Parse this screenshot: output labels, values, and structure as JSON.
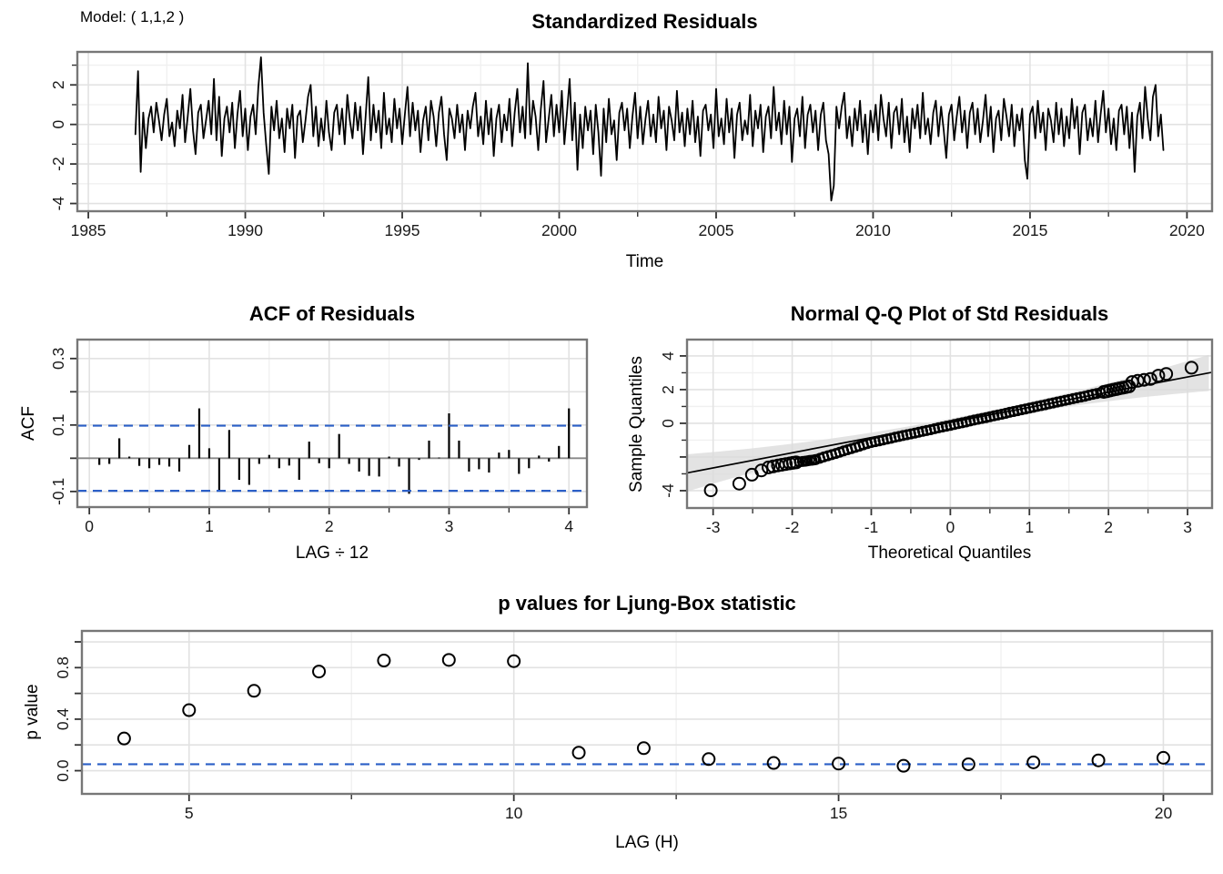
{
  "model_label": "Model: ( 1,1,2 )",
  "colors": {
    "series": "#000000",
    "dashed_blue": "#2b5fc7",
    "grid_major": "#e2e2e2",
    "grid_minor": "#f0f0f0",
    "panel_border": "#777777",
    "tick": "#333333",
    "qq_band": "#dcdcdc",
    "zero_line": "#888888"
  },
  "chart_data": [
    {
      "id": "residuals",
      "type": "line",
      "title": "Standardized Residuals",
      "xlabel": "Time",
      "ylabel": "",
      "xlim": [
        1984.65,
        2020.8
      ],
      "ylim": [
        -4.39,
        3.67
      ],
      "grid": true,
      "legend": "none",
      "x_ticks": {
        "values": [
          1985,
          1990,
          1995,
          2000,
          2005,
          2010,
          2015,
          2020
        ],
        "labels": [
          "1985",
          "1990",
          "1995",
          "2000",
          "2005",
          "2010",
          "2015",
          "2020"
        ]
      },
      "x_minor": [
        1987.5,
        1992.5,
        1997.5,
        2002.5,
        2007.5,
        2012.5,
        2017.5
      ],
      "y_ticks": {
        "values": [
          2,
          0,
          -2,
          -4
        ],
        "labels": [
          "2",
          "0",
          "-2",
          "-4"
        ]
      },
      "y_minor": [
        3,
        1,
        -1,
        -3
      ],
      "start_year": 1986.5,
      "step_years": 0.083333,
      "values": [
        -0.5,
        2.7,
        -2.4,
        0.6,
        -1.2,
        0.3,
        0.9,
        -0.4,
        1.1,
        0.2,
        -0.8,
        0.5,
        1.3,
        -0.6,
        0.1,
        -1.1,
        0.7,
        -0.2,
        1.5,
        -0.9,
        0.4,
        1.8,
        -0.3,
        -1.5,
        0.6,
        1.0,
        -0.7,
        0.2,
        1.2,
        -0.5,
        2.3,
        -0.8,
        1.4,
        -1.6,
        0.3,
        0.9,
        -0.4,
        1.1,
        -1.2,
        0.5,
        1.7,
        -0.6,
        0.8,
        -1.3,
        0.4,
        1.0,
        -0.5,
        1.9,
        3.4,
        0.6,
        -1.0,
        -2.5,
        0.9,
        -0.3,
        1.2,
        -0.7,
        0.3,
        -1.4,
        0.8,
        -0.2,
        1.0,
        -1.7,
        0.4,
        0.7,
        -0.9,
        0.2,
        1.4,
        2.0,
        -0.6,
        0.9,
        -1.1,
        0.3,
        -0.8,
        1.2,
        -0.4,
        -1.3,
        0.6,
        1.0,
        -0.5,
        0.8,
        -1.0,
        1.5,
        0.2,
        -0.7,
        1.1,
        -0.3,
        0.9,
        -1.5,
        0.4,
        2.4,
        -0.8,
        1.0,
        -0.4,
        0.7,
        -1.2,
        1.6,
        -0.5,
        0.3,
        -0.9,
        1.3,
        -0.2,
        0.8,
        -1.0,
        0.5,
        1.9,
        -0.6,
        1.1,
        -0.3,
        0.7,
        -1.4,
        0.2,
        0.9,
        -0.8,
        1.2,
        0.4,
        -1.1,
        0.6,
        1.4,
        -0.5,
        -1.8,
        0.8,
        0.3,
        -0.7,
        1.0,
        -0.4,
        0.5,
        -1.3,
        0.7,
        -0.2,
        0.9,
        1.6,
        -0.6,
        0.4,
        -1.0,
        1.2,
        -0.5,
        0.8,
        -1.6,
        0.3,
        1.0,
        -0.9,
        0.5,
        -0.3,
        1.3,
        -1.1,
        0.6,
        1.8,
        -0.4,
        0.9,
        -0.7,
        3.1,
        -0.5,
        1.2,
        0.4,
        -1.3,
        0.8,
        2.2,
        -0.9,
        0.3,
        1.5,
        -0.6,
        1.0,
        -0.4,
        1.7,
        -1.0,
        0.6,
        2.3,
        -0.8,
        1.1,
        -2.3,
        0.5,
        -1.2,
        0.9,
        -0.3,
        0.7,
        -1.5,
        1.0,
        -0.4,
        -2.6,
        0.8,
        -0.9,
        1.3,
        -0.5,
        0.2,
        -1.8,
        0.6,
        1.1,
        -0.3,
        0.8,
        -1.2,
        0.4,
        1.6,
        -0.7,
        0.9,
        -1.0,
        0.3,
        1.2,
        -0.6,
        0.5,
        -0.9,
        1.4,
        -0.2,
        0.7,
        -1.3,
        0.9,
        0.2,
        -0.8,
        1.7,
        -0.4,
        0.6,
        -1.1,
        0.8,
        -0.5,
        1.2,
        -0.9,
        0.4,
        -1.6,
        0.7,
        1.0,
        -0.3,
        0.5,
        -1.2,
        1.8,
        -0.6,
        0.3,
        -1.0,
        1.3,
        -0.4,
        0.8,
        -1.7,
        0.5,
        1.1,
        -0.8,
        0.2,
        -0.5,
        1.5,
        -1.1,
        0.7,
        -0.2,
        1.0,
        -1.4,
        0.4,
        0.9,
        -0.7,
        1.9,
        -0.3,
        0.6,
        -1.0,
        1.2,
        -0.5,
        0.9,
        -1.9,
        0.3,
        0.8,
        -0.6,
        1.4,
        -1.2,
        0.5,
        1.0,
        -0.4,
        0.7,
        -1.3,
        0.5,
        1.1,
        -0.8,
        -1.5,
        -3.85,
        -3.1,
        0.9,
        -0.2,
        0.9,
        1.6,
        -0.7,
        0.4,
        -1.1,
        0.8,
        -0.3,
        1.2,
        -0.9,
        0.5,
        -1.5,
        0.7,
        -0.4,
        1.0,
        -0.8,
        1.5,
        0.3,
        -0.6,
        1.1,
        -1.2,
        0.6,
        0.9,
        -0.5,
        1.3,
        -0.9,
        0.4,
        -1.4,
        0.8,
        -0.2,
        1.0,
        -0.7,
        1.6,
        -0.5,
        0.3,
        -1.0,
        0.6,
        1.2,
        -0.6,
        0.9,
        -0.3,
        -1.7,
        0.5,
        1.0,
        -0.8,
        0.4,
        1.4,
        -0.4,
        0.7,
        -1.2,
        0.6,
        1.1,
        -0.5,
        0.8,
        -0.9,
        0.2,
        1.5,
        -0.6,
        0.9,
        -1.4,
        0.3,
        0.7,
        -0.8,
        1.3,
        0.4,
        -0.6,
        1.0,
        -1.1,
        0.5,
        -0.3,
        0.8,
        -1.8,
        -2.75,
        0.5,
        0.9,
        -0.7,
        1.2,
        -0.4,
        0.6,
        -1.3,
        0.8,
        0.2,
        -0.9,
        1.1,
        -0.5,
        0.8,
        -1.1,
        0.4,
        -0.7,
        1.3,
        -0.2,
        0.9,
        -1.5,
        0.6,
        1.0,
        -0.8,
        0.3,
        -0.6,
        1.2,
        -0.9,
        0.5,
        1.7,
        -0.4,
        0.8,
        -1.0,
        0.3,
        -1.3,
        0.7,
        1.0,
        -0.5,
        0.9,
        -1.2,
        0.6,
        -2.4,
        0.4,
        1.1,
        -0.7,
        1.9,
        0.3,
        -0.8,
        1.4,
        2.0,
        -0.6,
        0.5,
        -1.3
      ]
    },
    {
      "id": "acf",
      "type": "bar",
      "title": "ACF of Residuals",
      "xlabel": "LAG ÷ 12",
      "ylabel": "ACF",
      "xlim": [
        -0.1,
        4.15
      ],
      "ylim": [
        -0.147,
        0.357
      ],
      "grid": true,
      "legend": "none",
      "lag_denominator": 12,
      "confidence_level": 0.098,
      "x_ticks": {
        "values": [
          0,
          1,
          2,
          3,
          4
        ],
        "labels": [
          "0",
          "1",
          "2",
          "3",
          "4"
        ]
      },
      "x_minor": [
        0.5,
        1.5,
        2.5,
        3.5
      ],
      "y_ticks": {
        "values": [
          0.3,
          0.2,
          0.1,
          0.0,
          -0.1
        ],
        "labels": [
          "0.3",
          "",
          "0.1",
          "",
          "-0.1"
        ]
      },
      "y_minor": [],
      "lags_start": 1,
      "values": [
        -0.02,
        -0.017,
        0.06,
        0.005,
        -0.023,
        -0.03,
        -0.02,
        -0.025,
        -0.04,
        0.04,
        0.15,
        0.03,
        -0.1,
        0.085,
        -0.065,
        -0.08,
        -0.017,
        0.01,
        -0.03,
        -0.022,
        -0.065,
        0.05,
        -0.015,
        -0.03,
        0.073,
        -0.017,
        -0.04,
        -0.053,
        -0.055,
        0.005,
        -0.025,
        -0.107,
        -0.005,
        0.053,
        0.002,
        0.135,
        0.053,
        -0.04,
        -0.033,
        -0.043,
        0.017,
        0.025,
        -0.047,
        -0.03,
        0.008,
        -0.01,
        0.037,
        0.15
      ]
    },
    {
      "id": "qq",
      "type": "scatter",
      "title": "Normal Q-Q Plot of Std Residuals",
      "xlabel": "Theoretical Quantiles",
      "ylabel": "Sample Quantiles",
      "xlim": [
        -3.33,
        3.31
      ],
      "ylim": [
        -5.03,
        4.97
      ],
      "grid": true,
      "legend": "none",
      "x_ticks": {
        "values": [
          -3,
          -2,
          -1,
          0,
          1,
          2,
          3
        ],
        "labels": [
          "-3",
          "-2",
          "-1",
          "0",
          "1",
          "2",
          "3"
        ]
      },
      "x_minor": [
        -2.5,
        -1.5,
        -0.5,
        0.5,
        1.5,
        2.5
      ],
      "y_ticks": {
        "values": [
          4,
          2,
          0,
          -2,
          -4
        ],
        "labels": [
          "4",
          "2",
          "0",
          "",
          "-4"
        ]
      },
      "y_minor": [
        3,
        1,
        -1,
        -3
      ],
      "reference_line": {
        "slope": 0.9,
        "intercept": 0.05
      },
      "band_half_width": {
        "base": 0.22,
        "quad": 0.08
      },
      "points": [
        [
          -3.03,
          -3.98
        ],
        [
          -2.67,
          -3.58
        ],
        [
          -2.51,
          -3.05
        ],
        [
          -2.39,
          -2.8
        ],
        [
          -2.3,
          -2.62
        ],
        [
          -2.24,
          -2.56
        ],
        [
          -2.18,
          -2.5
        ],
        [
          -2.13,
          -2.46
        ],
        [
          -2.08,
          -2.42
        ],
        [
          -2.03,
          -2.38
        ],
        [
          -1.99,
          -2.35
        ],
        [
          -1.95,
          -2.32
        ],
        [
          -1.91,
          -2.29
        ],
        [
          -1.87,
          -2.27
        ],
        [
          -1.84,
          -2.25
        ],
        [
          -1.81,
          -2.23
        ],
        [
          -1.78,
          -2.21
        ],
        [
          -1.75,
          -2.19
        ],
        [
          -1.72,
          -2.17
        ],
        [
          -1.7,
          -2.15
        ],
        [
          -1.65,
          -2.08
        ],
        [
          -1.6,
          -2.0
        ],
        [
          -1.55,
          -1.93
        ],
        [
          -1.5,
          -1.86
        ],
        [
          -1.45,
          -1.79
        ],
        [
          -1.4,
          -1.72
        ],
        [
          -1.35,
          -1.64
        ],
        [
          -1.3,
          -1.57
        ],
        [
          -1.25,
          -1.5
        ],
        [
          -1.2,
          -1.43
        ],
        [
          -1.15,
          -1.36
        ],
        [
          -1.1,
          -1.28
        ],
        [
          -1.05,
          -1.21
        ],
        [
          -1.0,
          -1.14
        ],
        [
          -0.95,
          -1.09
        ],
        [
          -0.9,
          -1.04
        ],
        [
          -0.85,
          -0.99
        ],
        [
          -0.8,
          -0.94
        ],
        [
          -0.75,
          -0.89
        ],
        [
          -0.7,
          -0.83
        ],
        [
          -0.65,
          -0.78
        ],
        [
          -0.6,
          -0.73
        ],
        [
          -0.55,
          -0.68
        ],
        [
          -0.5,
          -0.63
        ],
        [
          -0.45,
          -0.58
        ],
        [
          -0.4,
          -0.53
        ],
        [
          -0.35,
          -0.48
        ],
        [
          -0.3,
          -0.43
        ],
        [
          -0.25,
          -0.38
        ],
        [
          -0.2,
          -0.32
        ],
        [
          -0.15,
          -0.27
        ],
        [
          -0.1,
          -0.22
        ],
        [
          -0.05,
          -0.17
        ],
        [
          0.0,
          -0.12
        ],
        [
          0.05,
          -0.07
        ],
        [
          0.1,
          -0.02
        ],
        [
          0.15,
          0.03
        ],
        [
          0.2,
          0.08
        ],
        [
          0.25,
          0.14
        ],
        [
          0.3,
          0.19
        ],
        [
          0.35,
          0.24
        ],
        [
          0.4,
          0.29
        ],
        [
          0.45,
          0.34
        ],
        [
          0.5,
          0.39
        ],
        [
          0.55,
          0.44
        ],
        [
          0.6,
          0.49
        ],
        [
          0.65,
          0.54
        ],
        [
          0.7,
          0.59
        ],
        [
          0.75,
          0.65
        ],
        [
          0.8,
          0.7
        ],
        [
          0.85,
          0.75
        ],
        [
          0.9,
          0.8
        ],
        [
          0.95,
          0.85
        ],
        [
          1.0,
          0.9
        ],
        [
          1.05,
          0.95
        ],
        [
          1.1,
          1.0
        ],
        [
          1.15,
          1.05
        ],
        [
          1.2,
          1.1
        ],
        [
          1.25,
          1.16
        ],
        [
          1.3,
          1.21
        ],
        [
          1.35,
          1.26
        ],
        [
          1.4,
          1.31
        ],
        [
          1.45,
          1.36
        ],
        [
          1.5,
          1.41
        ],
        [
          1.55,
          1.46
        ],
        [
          1.6,
          1.51
        ],
        [
          1.65,
          1.56
        ],
        [
          1.7,
          1.61
        ],
        [
          1.75,
          1.67
        ],
        [
          1.8,
          1.72
        ],
        [
          1.85,
          1.77
        ],
        [
          1.9,
          1.82
        ],
        [
          1.94,
          1.86
        ],
        [
          1.98,
          1.9
        ],
        [
          2.02,
          1.95
        ],
        [
          2.06,
          1.99
        ],
        [
          2.1,
          2.03
        ],
        [
          2.14,
          2.07
        ],
        [
          2.18,
          2.11
        ],
        [
          2.22,
          2.15
        ],
        [
          2.26,
          2.19
        ],
        [
          2.3,
          2.45
        ],
        [
          2.37,
          2.52
        ],
        [
          2.45,
          2.58
        ],
        [
          2.53,
          2.63
        ],
        [
          2.63,
          2.83
        ],
        [
          2.73,
          2.93
        ],
        [
          3.05,
          3.3
        ]
      ]
    },
    {
      "id": "ljung_box",
      "type": "scatter",
      "title": "p values for Ljung-Box statistic",
      "xlabel": "LAG (H)",
      "ylabel": "p value",
      "xlim": [
        3.35,
        20.75
      ],
      "ylim": [
        -0.18,
        1.085
      ],
      "grid": true,
      "legend": "none",
      "significance_line": 0.05,
      "x_ticks": {
        "values": [
          5,
          10,
          15,
          20
        ],
        "labels": [
          "5",
          "10",
          "15",
          "20"
        ]
      },
      "x_minor": [
        7.5,
        12.5,
        17.5
      ],
      "y_ticks": {
        "values": [
          1.0,
          0.8,
          0.6,
          0.4,
          0.2,
          0.0
        ],
        "labels": [
          "",
          "0.8",
          "",
          "0.4",
          "",
          "0.0"
        ]
      },
      "y_minor": [],
      "lags": [
        4,
        5,
        6,
        7,
        8,
        9,
        10,
        11,
        12,
        13,
        14,
        15,
        16,
        17,
        18,
        19,
        20
      ],
      "pvalues": [
        0.25,
        0.47,
        0.62,
        0.77,
        0.855,
        0.86,
        0.85,
        0.14,
        0.175,
        0.09,
        0.06,
        0.055,
        0.038,
        0.05,
        0.065,
        0.08,
        0.1
      ]
    }
  ]
}
